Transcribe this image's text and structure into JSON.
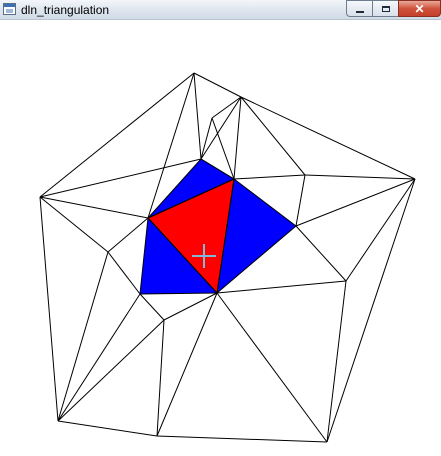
{
  "window": {
    "title": "dln_triangulation",
    "icon": "app-window-icon",
    "controls": {
      "minimize": {
        "icon": "minimize-icon"
      },
      "maximize": {
        "icon": "maximize-icon"
      },
      "close": {
        "icon": "close-icon",
        "glyph": "✕"
      }
    }
  },
  "canvas": {
    "colors": {
      "background": "#ffffff",
      "edge": "#000000",
      "neighbor_fill": "#0000ff",
      "selected_fill": "#ff0000",
      "cursor": "#7fb8d8"
    },
    "cursor_icon": "crosshair-icon"
  }
}
